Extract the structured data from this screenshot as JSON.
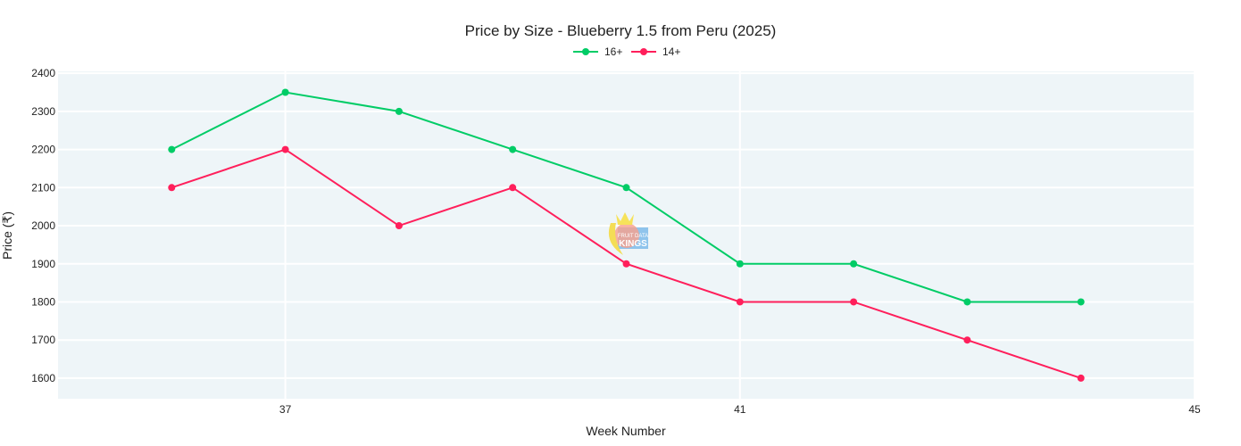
{
  "chart_data": {
    "type": "line",
    "title": "Price by Size - Blueberry 1.5 from Peru (2025)",
    "xlabel": "Week Number",
    "ylabel": "Price (₹)",
    "x": [
      36,
      37,
      38,
      39,
      40,
      41,
      42,
      43,
      44
    ],
    "xlim": [
      35,
      45
    ],
    "ylim": [
      1546,
      2405
    ],
    "xticks": [
      37,
      41,
      45
    ],
    "yticks": [
      1600,
      1700,
      1800,
      1900,
      2000,
      2100,
      2200,
      2300,
      2400
    ],
    "grid": true,
    "legend_position": "top-center",
    "plot_background": "#eef5f8",
    "series": [
      {
        "name": "16+",
        "color": "#00cc66",
        "values": [
          2200,
          2350,
          2300,
          2200,
          2100,
          1900,
          1900,
          1800,
          1800
        ]
      },
      {
        "name": "14+",
        "color": "#ff1f5b",
        "values": [
          2100,
          2200,
          2000,
          2100,
          1900,
          1800,
          1800,
          1700,
          1600
        ]
      }
    ]
  },
  "watermark": {
    "text": "FRUIT DATA KINGS .com"
  }
}
